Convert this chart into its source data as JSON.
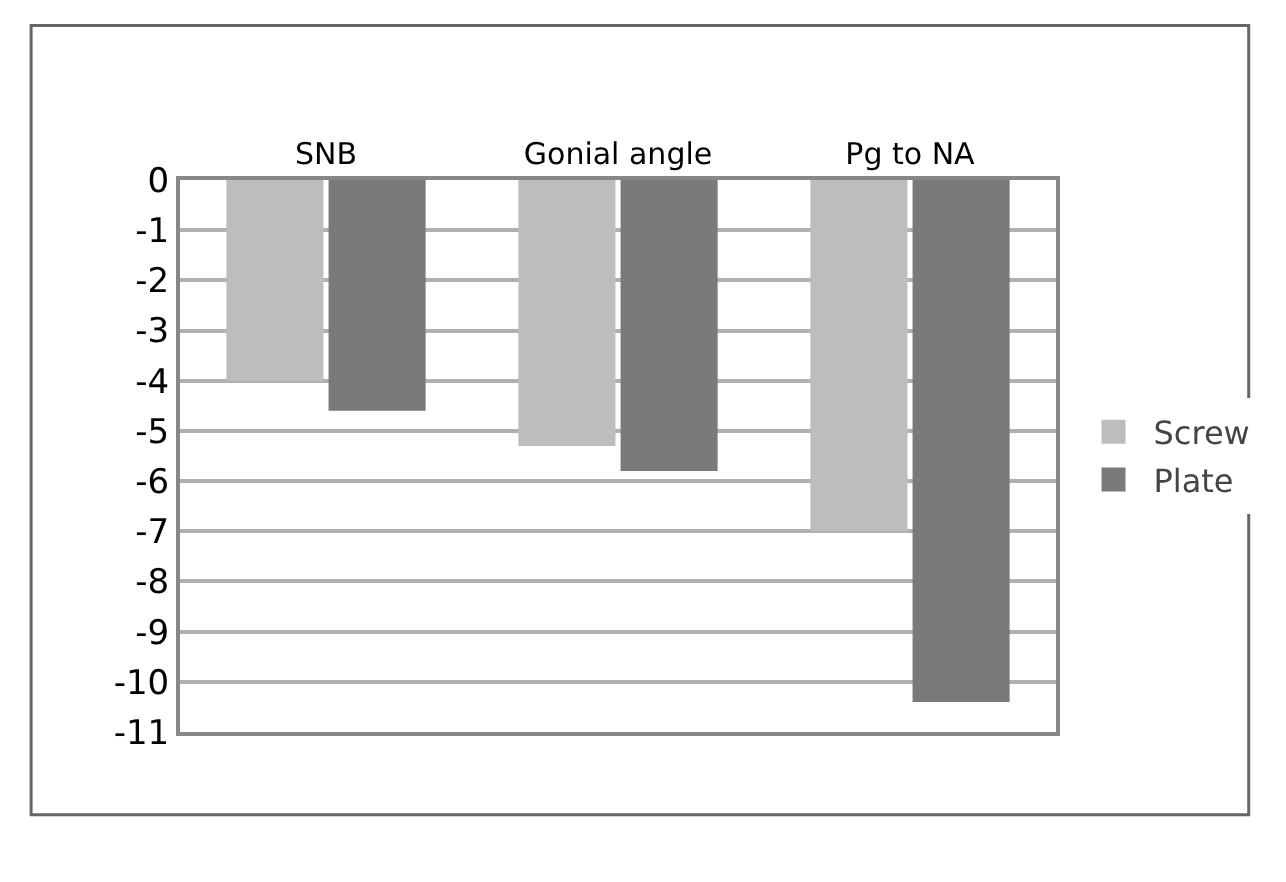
{
  "chart_data": {
    "type": "bar",
    "categories": [
      "SNB",
      "Gonial angle",
      "Pg to NA"
    ],
    "series": [
      {
        "name": "Screw",
        "color": "#bdbdbd",
        "values": [
          -4.0,
          -5.3,
          -7.0
        ]
      },
      {
        "name": "Plate",
        "color": "#7a7a7a",
        "values": [
          -4.6,
          -5.8,
          -10.4
        ]
      }
    ],
    "ylim": [
      -11,
      0
    ],
    "yticks": [
      0,
      -1,
      -2,
      -3,
      -4,
      -5,
      -6,
      -7,
      -8,
      -9,
      -10,
      -11
    ],
    "grid": "y",
    "legend": "right"
  }
}
